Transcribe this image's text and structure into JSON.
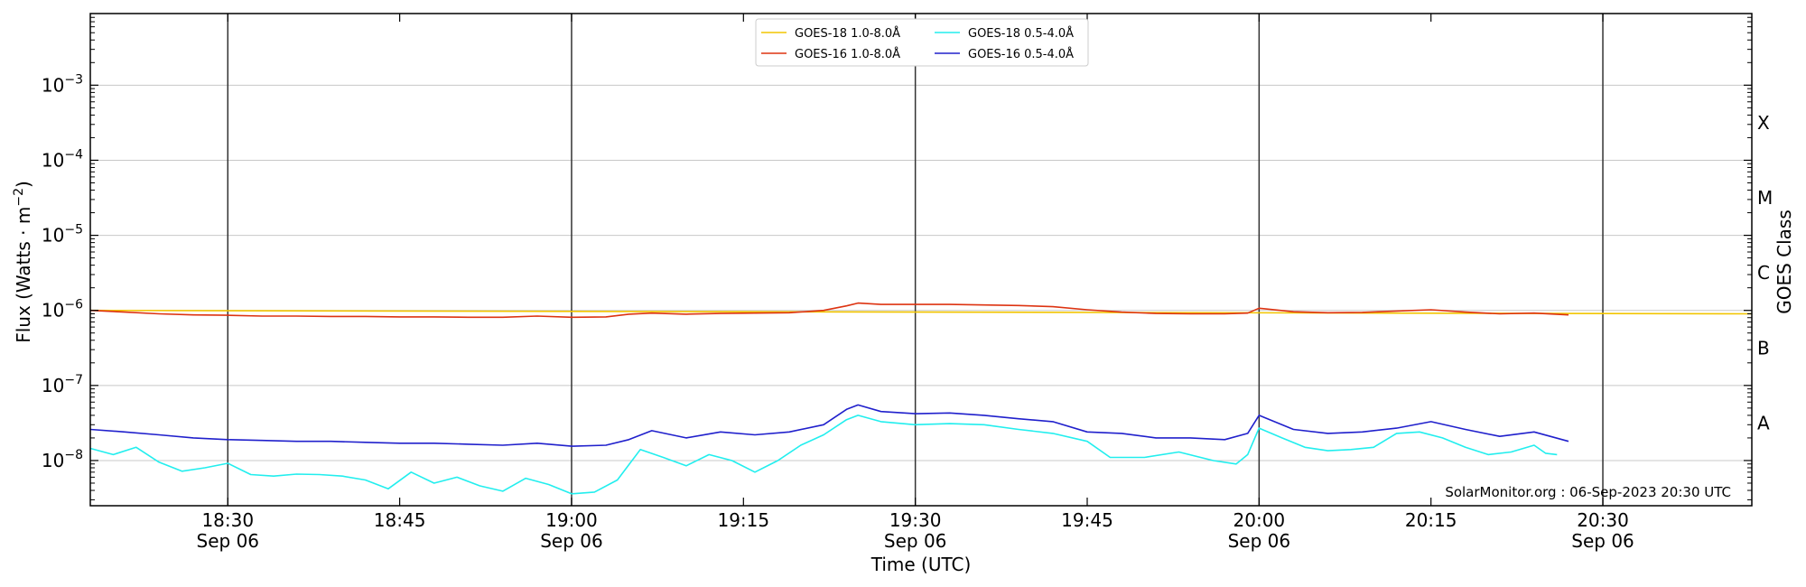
{
  "chart_data": {
    "type": "line",
    "title": "",
    "xlabel": "Time (UTC)",
    "ylabel_prefix": "Flux (Watts · m",
    "ylabel_exp": "−2",
    "ylabel_suffix": ")",
    "right_label": "GOES Class",
    "yscale": "log",
    "ylim": [
      2.5e-09,
      0.009
    ],
    "xlim": [
      "18:18",
      "20:43"
    ],
    "grid": "horizontal",
    "legend_position": "top-center",
    "watermark": "SolarMonitor.org : 06-Sep-2023 20:30 UTC",
    "x_ticks": [
      {
        "t": "18:30",
        "label": "18:30",
        "sub": "Sep 06",
        "vline": true
      },
      {
        "t": "18:45",
        "label": "18:45",
        "sub": "",
        "vline": false
      },
      {
        "t": "19:00",
        "label": "19:00",
        "sub": "Sep 06",
        "vline": true
      },
      {
        "t": "19:15",
        "label": "19:15",
        "sub": "",
        "vline": false
      },
      {
        "t": "19:30",
        "label": "19:30",
        "sub": "Sep 06",
        "vline": true
      },
      {
        "t": "19:45",
        "label": "19:45",
        "sub": "",
        "vline": false
      },
      {
        "t": "20:00",
        "label": "20:00",
        "sub": "Sep 06",
        "vline": true
      },
      {
        "t": "20:15",
        "label": "20:15",
        "sub": "",
        "vline": false
      },
      {
        "t": "20:30",
        "label": "20:30",
        "sub": "Sep 06",
        "vline": true
      }
    ],
    "y_ticks": [
      {
        "v": 1e-08,
        "exp": "−8"
      },
      {
        "v": 1e-07,
        "exp": "−7"
      },
      {
        "v": 1e-06,
        "exp": "−6"
      },
      {
        "v": 1e-05,
        "exp": "−5"
      },
      {
        "v": 0.0001,
        "exp": "−4"
      },
      {
        "v": 0.001,
        "exp": "−3"
      }
    ],
    "goes_classes": [
      {
        "label": "A",
        "v": 3.16e-08
      },
      {
        "label": "B",
        "v": 3.16e-07
      },
      {
        "label": "C",
        "v": 3.16e-06
      },
      {
        "label": "M",
        "v": 3.16e-05
      },
      {
        "label": "X",
        "v": 0.000316
      }
    ],
    "series": [
      {
        "name": "GOES-18 1.0-8.0Å",
        "color": "#f2c500",
        "x": [
          "18:18",
          "20:45"
        ],
        "y": [
          1e-06,
          9e-07
        ]
      },
      {
        "name": "GOES-16 1.0-8.0Å",
        "color": "#dd3311",
        "x": [
          "18:18",
          "18:21",
          "18:24",
          "18:27",
          "18:30",
          "18:33",
          "18:36",
          "18:39",
          "18:42",
          "18:45",
          "18:48",
          "18:51",
          "18:54",
          "18:57",
          "19:00",
          "19:03",
          "19:05",
          "19:07",
          "19:10",
          "19:13",
          "19:16",
          "19:19",
          "19:22",
          "19:24",
          "19:25",
          "19:27",
          "19:30",
          "19:33",
          "19:36",
          "19:39",
          "19:42",
          "19:45",
          "19:48",
          "19:51",
          "19:54",
          "19:57",
          "19:59",
          "20:00",
          "20:03",
          "20:06",
          "20:09",
          "20:12",
          "20:15",
          "20:18",
          "20:21",
          "20:24",
          "20:27"
        ],
        "y": [
          1e-06,
          9.5e-07,
          9e-07,
          8.7e-07,
          8.6e-07,
          8.4e-07,
          8.4e-07,
          8.3e-07,
          8.3e-07,
          8.2e-07,
          8.2e-07,
          8.1e-07,
          8.1e-07,
          8.4e-07,
          8.1e-07,
          8.2e-07,
          8.9e-07,
          9.2e-07,
          8.9e-07,
          9.1e-07,
          9.2e-07,
          9.3e-07,
          1e-06,
          1.15e-06,
          1.25e-06,
          1.2e-06,
          1.2e-06,
          1.2e-06,
          1.18e-06,
          1.16e-06,
          1.12e-06,
          1.02e-06,
          9.5e-07,
          9.1e-07,
          9e-07,
          9e-07,
          9.2e-07,
          1.07e-06,
          9.6e-07,
          9.3e-07,
          9.4e-07,
          9.8e-07,
          1.02e-06,
          9.5e-07,
          9e-07,
          9.2e-07,
          8.7e-07
        ]
      },
      {
        "name": "GOES-18 0.5-4.0Å",
        "color": "#22eeee",
        "x": [
          "18:18",
          "18:20",
          "18:22",
          "18:24",
          "18:26",
          "18:28",
          "18:30",
          "18:32",
          "18:34",
          "18:36",
          "18:38",
          "18:40",
          "18:42",
          "18:44",
          "18:46",
          "18:48",
          "18:50",
          "18:52",
          "18:54",
          "18:56",
          "18:58",
          "19:00",
          "19:02",
          "19:04",
          "19:06",
          "19:08",
          "19:10",
          "19:12",
          "19:14",
          "19:16",
          "19:18",
          "19:20",
          "19:22",
          "19:24",
          "19:25",
          "19:27",
          "19:30",
          "19:33",
          "19:36",
          "19:39",
          "19:42",
          "19:45",
          "19:47",
          "19:50",
          "19:53",
          "19:56",
          "19:58",
          "19:59",
          "20:00",
          "20:02",
          "20:04",
          "20:06",
          "20:08",
          "20:10",
          "20:12",
          "20:14",
          "20:16",
          "20:18",
          "20:20",
          "20:22",
          "20:24",
          "20:25",
          "20:26"
        ],
        "y": [
          1.45e-08,
          1.2e-08,
          1.5e-08,
          9.5e-09,
          7.2e-09,
          8e-09,
          9.2e-09,
          6.5e-09,
          6.2e-09,
          6.6e-09,
          6.5e-09,
          6.2e-09,
          5.5e-09,
          4.2e-09,
          7e-09,
          5e-09,
          6e-09,
          4.6e-09,
          3.9e-09,
          5.8e-09,
          4.8e-09,
          3.6e-09,
          3.8e-09,
          5.5e-09,
          1.4e-08,
          1.1e-08,
          8.5e-09,
          1.2e-08,
          1e-08,
          7e-09,
          1e-08,
          1.6e-08,
          2.2e-08,
          3.5e-08,
          4e-08,
          3.3e-08,
          3e-08,
          3.1e-08,
          3e-08,
          2.6e-08,
          2.3e-08,
          1.8e-08,
          1.1e-08,
          1.1e-08,
          1.3e-08,
          1e-08,
          9e-09,
          1.2e-08,
          2.7e-08,
          2e-08,
          1.5e-08,
          1.35e-08,
          1.4e-08,
          1.5e-08,
          2.3e-08,
          2.4e-08,
          2e-08,
          1.5e-08,
          1.2e-08,
          1.3e-08,
          1.6e-08,
          1.25e-08,
          1.2e-08
        ]
      },
      {
        "name": "GOES-16 0.5-4.0Å",
        "color": "#2020cc",
        "x": [
          "18:18",
          "18:21",
          "18:24",
          "18:27",
          "18:30",
          "18:33",
          "18:36",
          "18:39",
          "18:42",
          "18:45",
          "18:48",
          "18:51",
          "18:54",
          "18:57",
          "19:00",
          "19:03",
          "19:05",
          "19:07",
          "19:10",
          "19:13",
          "19:16",
          "19:19",
          "19:22",
          "19:24",
          "19:25",
          "19:27",
          "19:30",
          "19:33",
          "19:36",
          "19:39",
          "19:42",
          "19:45",
          "19:48",
          "19:51",
          "19:54",
          "19:57",
          "19:59",
          "20:00",
          "20:03",
          "20:06",
          "20:09",
          "20:12",
          "20:15",
          "20:18",
          "20:21",
          "20:24",
          "20:27"
        ],
        "y": [
          2.6e-08,
          2.4e-08,
          2.2e-08,
          2e-08,
          1.9e-08,
          1.85e-08,
          1.8e-08,
          1.8e-08,
          1.75e-08,
          1.7e-08,
          1.7e-08,
          1.65e-08,
          1.6e-08,
          1.7e-08,
          1.55e-08,
          1.6e-08,
          1.9e-08,
          2.5e-08,
          2e-08,
          2.4e-08,
          2.2e-08,
          2.4e-08,
          3e-08,
          4.8e-08,
          5.5e-08,
          4.5e-08,
          4.2e-08,
          4.3e-08,
          4e-08,
          3.6e-08,
          3.3e-08,
          2.4e-08,
          2.3e-08,
          2e-08,
          2e-08,
          1.9e-08,
          2.3e-08,
          4e-08,
          2.6e-08,
          2.3e-08,
          2.4e-08,
          2.7e-08,
          3.3e-08,
          2.6e-08,
          2.1e-08,
          2.4e-08,
          1.8e-08
        ]
      }
    ]
  }
}
